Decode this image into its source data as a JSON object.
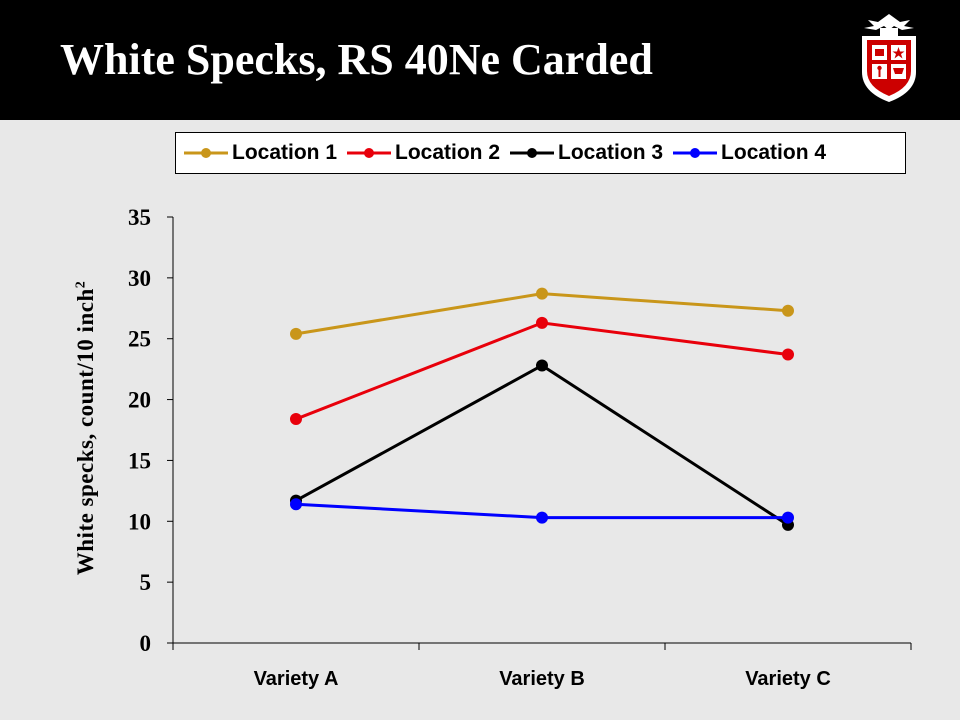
{
  "slide": {
    "title": "White Specks, RS 40Ne Carded"
  },
  "colors": {
    "title_bar": "#000000",
    "background": "#e8e8e8",
    "logo_red": "#cc0000"
  },
  "chart_data": {
    "type": "line",
    "categories": [
      "Variety A",
      "Variety B",
      "Variety C"
    ],
    "series": [
      {
        "name": "Location 1",
        "color": "#c9961a",
        "values": [
          25.4,
          28.7,
          27.3
        ]
      },
      {
        "name": "Location 2",
        "color": "#e8000b",
        "values": [
          18.4,
          26.3,
          23.7
        ]
      },
      {
        "name": "Location 3",
        "color": "#000000",
        "values": [
          11.7,
          22.8,
          9.7
        ]
      },
      {
        "name": "Location 4",
        "color": "#0000ff",
        "values": [
          11.4,
          10.3,
          10.3
        ]
      }
    ],
    "ylabel": "White specks, count/10 inch",
    "ylabel_sup": "2",
    "ylim": [
      0,
      35
    ],
    "yticks": [
      "0",
      "5",
      "10",
      "15",
      "20",
      "25",
      "30",
      "35"
    ],
    "grid": false,
    "legend_position": "top"
  }
}
